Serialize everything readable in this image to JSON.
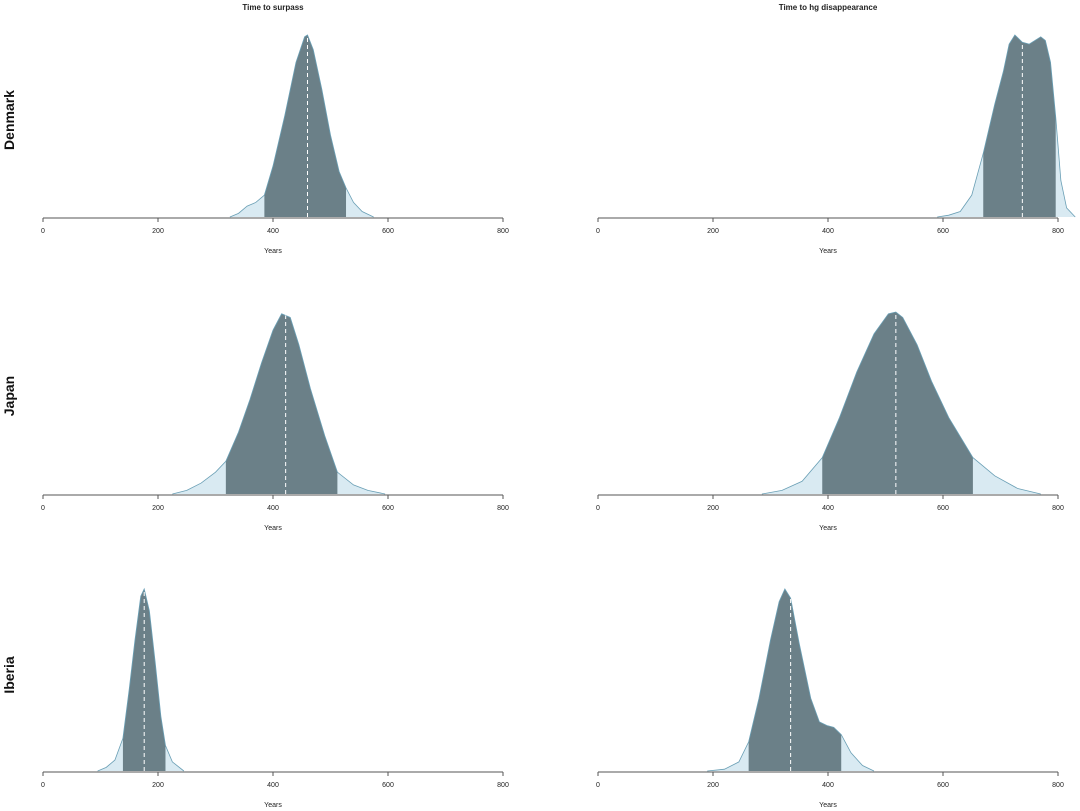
{
  "columns": [
    "Time to surpass",
    "Time to hg disappearance"
  ],
  "rows": [
    "Denmark",
    "Japan",
    "Iberia"
  ],
  "colors": {
    "tail": "#d9eaf2",
    "hpd": "#6b8088",
    "outline": "#6a9fb5",
    "median": "#ffffff"
  },
  "chart_data": [
    {
      "type": "area",
      "row": "Denmark",
      "title": "Time to surpass",
      "xlabel": "Years",
      "xlim": [
        0,
        800
      ],
      "ticks": [
        0,
        200,
        400,
        600,
        800
      ],
      "median": 460,
      "hpd": [
        385,
        527
      ],
      "density": {
        "x": [
          325,
          340,
          355,
          370,
          385,
          400,
          420,
          440,
          455,
          460,
          470,
          485,
          500,
          515,
          527,
          540,
          555,
          575
        ],
        "y": [
          0,
          0.02,
          0.06,
          0.08,
          0.12,
          0.28,
          0.55,
          0.85,
          0.99,
          1.0,
          0.92,
          0.7,
          0.45,
          0.25,
          0.16,
          0.08,
          0.03,
          0
        ]
      }
    },
    {
      "type": "area",
      "row": "Denmark",
      "title": "Time to hg disappearance",
      "xlabel": "Years",
      "xlim": [
        0,
        800
      ],
      "ticks": [
        0,
        200,
        400,
        600,
        800
      ],
      "median": 738,
      "hpd": [
        670,
        796
      ],
      "density": {
        "x": [
          590,
          610,
          630,
          650,
          670,
          690,
          705,
          715,
          725,
          738,
          750,
          760,
          770,
          778,
          787,
          796,
          805,
          815,
          830
        ],
        "y": [
          0,
          0.01,
          0.03,
          0.12,
          0.35,
          0.62,
          0.8,
          0.95,
          1.0,
          0.96,
          0.95,
          0.97,
          0.99,
          0.97,
          0.85,
          0.55,
          0.2,
          0.05,
          0
        ]
      }
    },
    {
      "type": "area",
      "row": "Japan",
      "title": "Time to surpass",
      "xlabel": "Years",
      "xlim": [
        0,
        800
      ],
      "ticks": [
        0,
        200,
        400,
        600,
        800
      ],
      "median": 422,
      "hpd": [
        318,
        512
      ],
      "density": {
        "x": [
          225,
          250,
          275,
          300,
          318,
          340,
          360,
          380,
          400,
          415,
          430,
          445,
          465,
          490,
          512,
          540,
          565,
          595
        ],
        "y": [
          0,
          0.02,
          0.06,
          0.12,
          0.18,
          0.34,
          0.52,
          0.72,
          0.9,
          0.99,
          0.97,
          0.82,
          0.58,
          0.32,
          0.12,
          0.05,
          0.02,
          0
        ]
      }
    },
    {
      "type": "area",
      "row": "Japan",
      "title": "Time to hg disappearance",
      "xlabel": "Years",
      "xlim": [
        0,
        800
      ],
      "ticks": [
        0,
        200,
        400,
        600,
        800
      ],
      "median": 518,
      "hpd": [
        390,
        652
      ],
      "density": {
        "x": [
          285,
          320,
          355,
          390,
          420,
          450,
          480,
          505,
          518,
          530,
          555,
          580,
          610,
          652,
          690,
          730,
          770
        ],
        "y": [
          0,
          0.02,
          0.07,
          0.2,
          0.42,
          0.67,
          0.88,
          0.99,
          1.0,
          0.97,
          0.82,
          0.62,
          0.42,
          0.2,
          0.1,
          0.03,
          0
        ]
      }
    },
    {
      "type": "area",
      "row": "Iberia",
      "title": "Time to surpass",
      "xlabel": "Years",
      "xlim": [
        0,
        800
      ],
      "ticks": [
        0,
        200,
        400,
        600,
        800
      ],
      "median": 176,
      "hpd": [
        139,
        213
      ],
      "density": {
        "x": [
          95,
          110,
          125,
          139,
          150,
          160,
          170,
          176,
          185,
          195,
          205,
          213,
          225,
          245
        ],
        "y": [
          0,
          0.02,
          0.06,
          0.18,
          0.45,
          0.72,
          0.96,
          1.0,
          0.88,
          0.6,
          0.3,
          0.14,
          0.05,
          0
        ]
      }
    },
    {
      "type": "area",
      "row": "Iberia",
      "title": "Time to hg disappearance",
      "xlabel": "Years",
      "xlim": [
        0,
        800
      ],
      "ticks": [
        0,
        200,
        400,
        600,
        800
      ],
      "median": 335,
      "hpd": [
        262,
        423
      ],
      "density": {
        "x": [
          190,
          220,
          245,
          262,
          280,
          300,
          315,
          325,
          335,
          350,
          370,
          385,
          398,
          410,
          423,
          440,
          460,
          480
        ],
        "y": [
          0,
          0.01,
          0.05,
          0.16,
          0.4,
          0.72,
          0.93,
          1.0,
          0.95,
          0.7,
          0.4,
          0.27,
          0.25,
          0.24,
          0.2,
          0.1,
          0.03,
          0
        ]
      }
    }
  ]
}
